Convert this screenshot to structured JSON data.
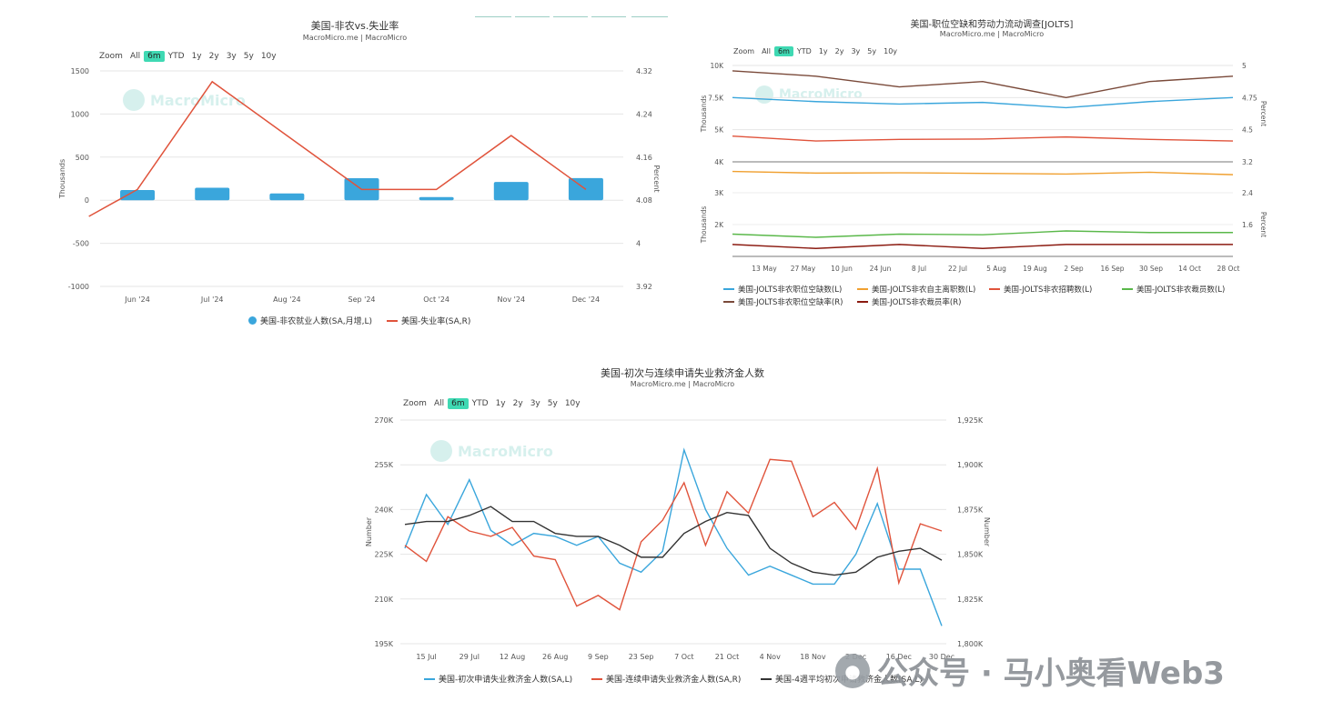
{
  "watermark": {
    "icon": "wechat-icon",
    "text": "公众号 · 马小奥看Web3"
  },
  "mm_watermark": "MacroMicro",
  "zoom_options": [
    "Zoom",
    "All",
    "6m",
    "YTD",
    "1y",
    "2y",
    "3y",
    "5y",
    "10y"
  ],
  "zoom_active": "6m",
  "charts": [
    {
      "id": "nfp",
      "title": "美国-非农vs.失业率",
      "subtitle": "MacroMicro.me | MacroMicro",
      "ylabel_left": "Thousands",
      "ylabel_right": "Percent",
      "yticks_left": [
        "1500",
        "1000",
        "500",
        "0",
        "-500",
        "-1000"
      ],
      "yticks_right": [
        "4.32",
        "4.24",
        "4.16",
        "4.08",
        "4",
        "3.92"
      ],
      "xticks": [
        "Jun '24",
        "Jul '24",
        "Aug '24",
        "Sep '24",
        "Oct '24",
        "Nov '24",
        "Dec '24"
      ],
      "legend": [
        "美国-非农就业人数(SA,月增,L)",
        "美国-失业率(SA,R)"
      ]
    },
    {
      "id": "jolts",
      "title": "美国-职位空缺和劳动力流动调查[JOLTS]",
      "subtitle": "MacroMicro.me | MacroMicro",
      "ylabel_left": "Thousands",
      "ylabel_right": "Percent",
      "yticks_left_top": [
        "10K",
        "7.5K",
        "5K",
        "4K"
      ],
      "yticks_right_top": [
        "5",
        "4.75",
        "4.5",
        "3.2"
      ],
      "yticks_left_bottom": [
        "3K",
        "2K"
      ],
      "yticks_right_bottom": [
        "2.4",
        "1.6"
      ],
      "xticks": [
        "13 May",
        "27 May",
        "10 Jun",
        "24 Jun",
        "8 Jul",
        "22 Jul",
        "5 Aug",
        "19 Aug",
        "2 Sep",
        "16 Sep",
        "30 Sep",
        "14 Oct",
        "28 Oct"
      ],
      "legend": [
        "美国-JOLTS非农职位空缺数(L)",
        "美国-JOLTS非农自主离职数(L)",
        "美国-JOLTS非农招聘数(L)",
        "美国-JOLTS非农裁员数(L)",
        "美国-JOLTS非农职位空缺率(R)",
        "美国-JOLTS非农裁员率(R)"
      ]
    },
    {
      "id": "claims",
      "title": "美国-初次与连续申请失业救济金人数",
      "subtitle": "MacroMicro.me | MacroMicro",
      "ylabel_left": "Number",
      "ylabel_right": "Number",
      "yticks_left": [
        "270K",
        "255K",
        "240K",
        "225K",
        "210K",
        "195K"
      ],
      "yticks_right": [
        "1,925K",
        "1,900K",
        "1,875K",
        "1,850K",
        "1,825K",
        "1,800K"
      ],
      "xticks": [
        "15 Jul",
        "29 Jul",
        "12 Aug",
        "26 Aug",
        "9 Sep",
        "23 Sep",
        "7 Oct",
        "21 Oct",
        "4 Nov",
        "18 Nov",
        "2 Dec",
        "16 Dec",
        "30 Dec"
      ],
      "legend": [
        "美国-初次申请失业救济金人数(SA,L)",
        "美国-连续申请失业救济金人数(SA,R)",
        "美国-4週平均初次申请救济金人数(SA,L)"
      ]
    }
  ],
  "chart_data": [
    {
      "type": "bar",
      "title": "美国-非农vs.失业率",
      "categories": [
        "Jun '24",
        "Jul '24",
        "Aug '24",
        "Sep '24",
        "Oct '24",
        "Nov '24",
        "Dec '24"
      ],
      "ylim": [
        -1000,
        1500
      ],
      "y2lim": [
        3.92,
        4.32
      ],
      "colors": [
        "#3aa6dc",
        "#e0533b"
      ],
      "series": [
        {
          "name": "美国-非农就业人数(SA,月增,L)",
          "type": "bar",
          "axis": "left",
          "values": [
            118,
            144,
            78,
            255,
            36,
            212,
            256
          ]
        },
        {
          "name": "美国-失业率(SA,R)",
          "type": "line",
          "axis": "right",
          "x": [
            -0.65,
            0,
            1,
            2,
            3,
            4,
            5,
            6
          ],
          "values": [
            4.05,
            4.1,
            4.3,
            4.2,
            4.1,
            4.1,
            4.2,
            4.1
          ]
        }
      ]
    },
    {
      "type": "line",
      "title": "美国-职位空缺和劳动力流动调查[JOLTS]",
      "x": [
        "2024-05-01",
        "2024-06-01",
        "2024-07-01",
        "2024-08-01",
        "2024-09-01",
        "2024-10-01",
        "2024-11-01"
      ],
      "xticks": [
        "13 May",
        "27 May",
        "10 Jun",
        "24 Jun",
        "8 Jul",
        "22 Jul",
        "5 Aug",
        "19 Aug",
        "2 Sep",
        "16 Sep",
        "30 Sep",
        "14 Oct",
        "28 Oct"
      ],
      "series": [
        {
          "name": "美国-JOLTS非农职位空缺数(L)",
          "color": "#3aa6dc",
          "axis": "left-top",
          "values": [
            8000,
            7750,
            7600,
            7700,
            7370,
            7750,
            8000
          ]
        },
        {
          "name": "美国-JOLTS非农自主离职数(L)",
          "color": "#f0a030",
          "axis": "left-top",
          "values": [
            3400,
            3300,
            3320,
            3280,
            3240,
            3350,
            3200
          ]
        },
        {
          "name": "美国-JOLTS非农招聘数(L)",
          "color": "#e0533b",
          "axis": "left-top",
          "values": [
            5600,
            5300,
            5400,
            5420,
            5550,
            5400,
            5300
          ]
        },
        {
          "name": "美国-JOLTS非农裁员数(L)",
          "color": "#5ab84a",
          "axis": "left-bottom",
          "values": [
            1700,
            1600,
            1700,
            1680,
            1800,
            1750,
            1750
          ]
        },
        {
          "name": "美国-JOLTS非农职位空缺率(R)",
          "color": "#7a4a3a",
          "axis": "right-top",
          "values": [
            4.9,
            4.8,
            4.6,
            4.7,
            4.4,
            4.7,
            4.8
          ]
        },
        {
          "name": "美国-JOLTS非农裁员率(R)",
          "color": "#8b1a10",
          "axis": "right-bottom",
          "values": [
            1.1,
            1.0,
            1.1,
            1.0,
            1.1,
            1.1,
            1.1
          ]
        }
      ],
      "ylim_top": [
        4000,
        10000
      ],
      "y2lim_top": [
        3.2,
        5
      ],
      "ylim_bottom": [
        1000,
        3000
      ],
      "y2lim_bottom": [
        0.8,
        2.4
      ]
    },
    {
      "type": "line",
      "title": "美国-初次与连续申请失业救济金人数",
      "x": [
        "2024-07-06",
        "2024-07-13",
        "2024-07-20",
        "2024-07-27",
        "2024-08-03",
        "2024-08-10",
        "2024-08-17",
        "2024-08-24",
        "2024-08-31",
        "2024-09-07",
        "2024-09-14",
        "2024-09-21",
        "2024-09-28",
        "2024-10-05",
        "2024-10-12",
        "2024-10-19",
        "2024-10-26",
        "2024-11-02",
        "2024-11-09",
        "2024-11-16",
        "2024-11-23",
        "2024-11-30",
        "2024-12-07",
        "2024-12-14",
        "2024-12-21",
        "2024-12-28"
      ],
      "xticks": [
        "15 Jul",
        "29 Jul",
        "12 Aug",
        "26 Aug",
        "9 Sep",
        "23 Sep",
        "7 Oct",
        "21 Oct",
        "4 Nov",
        "18 Nov",
        "2 Dec",
        "16 Dec",
        "30 Dec"
      ],
      "ylim": [
        195000,
        270000
      ],
      "y2lim": [
        1800000,
        1925000
      ],
      "series": [
        {
          "name": "美国-初次申请失业救济金人数(SA,L)",
          "color": "#3aa6dc",
          "axis": "left",
          "values": [
            227000,
            245000,
            235000,
            250000,
            233000,
            228000,
            232000,
            231000,
            228000,
            231000,
            222000,
            219000,
            226000,
            260000,
            240000,
            227000,
            218000,
            221000,
            218000,
            215000,
            215000,
            225000,
            242000,
            220000,
            220000,
            201000
          ]
        },
        {
          "name": "美国-连续申请失业救济金人数(SA,R)",
          "color": "#e0533b",
          "axis": "right",
          "values": [
            1855000,
            1846000,
            1871000,
            1863000,
            1860000,
            1865000,
            1849000,
            1847000,
            1821000,
            1827000,
            1819000,
            1857000,
            1869000,
            1890000,
            1855000,
            1885000,
            1873000,
            1903000,
            1902000,
            1871000,
            1879000,
            1864000,
            1898000,
            1834000,
            1867000,
            1863000
          ]
        },
        {
          "name": "美国-4週平均初次申请救济金人数(SA,L)",
          "color": "#333333",
          "axis": "left",
          "values": [
            235000,
            236000,
            236000,
            238000,
            241000,
            236000,
            236000,
            232000,
            231000,
            231000,
            228000,
            224000,
            224000,
            232000,
            236000,
            239000,
            238000,
            227000,
            222000,
            219000,
            218000,
            219000,
            224000,
            226000,
            227000,
            223000
          ]
        }
      ]
    }
  ]
}
